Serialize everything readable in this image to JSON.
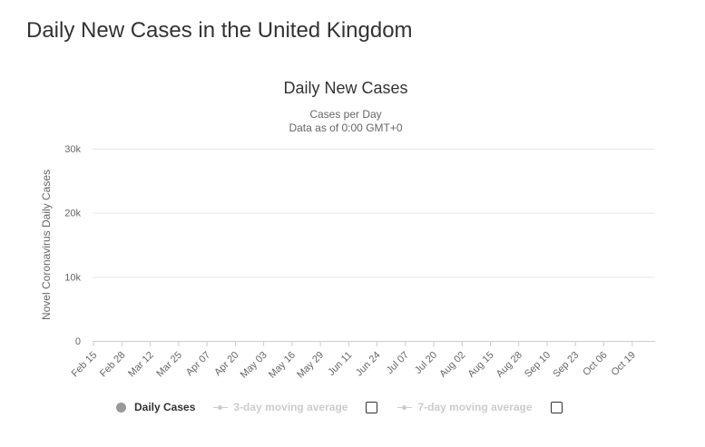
{
  "page": {
    "title": "Daily New Cases in the United Kingdom"
  },
  "chart_data": {
    "type": "bar",
    "title": "Daily New Cases",
    "subtitle_line1": "Cases per Day",
    "subtitle_line2": "Data as of 0:00 GMT+0",
    "ylabel": "Novel Coronavirus Daily Cases",
    "xlabel": "",
    "ylim": [
      0,
      30000
    ],
    "y_ticks": [
      0,
      10000,
      20000,
      30000
    ],
    "y_tick_labels": [
      "0",
      "10k",
      "20k",
      "30k"
    ],
    "x_tick_labels": [
      "Feb 15",
      "Feb 28",
      "Mar 12",
      "Mar 25",
      "Apr 07",
      "Apr 20",
      "May 03",
      "May 16",
      "May 29",
      "Jun 11",
      "Jun 24",
      "Jul 07",
      "Jul 20",
      "Aug 02",
      "Aug 15",
      "Aug 28",
      "Sep 10",
      "Sep 23",
      "Oct 06",
      "Oct 19"
    ],
    "x_tick_interval_days": 13,
    "first_date": "Feb 15",
    "grid": true,
    "bar_color": "#999999",
    "series": [
      {
        "name": "Daily Cases",
        "values": [
          0,
          0,
          0,
          0,
          0,
          0,
          0,
          0,
          0,
          0,
          0,
          0,
          0,
          0,
          0,
          0,
          0,
          0,
          0,
          0,
          0,
          0,
          0,
          0,
          0,
          0,
          0,
          0,
          0,
          0,
          0,
          0,
          0,
          0,
          0,
          0,
          0,
          0,
          0,
          0,
          0,
          0,
          0,
          0,
          0,
          0,
          0,
          0,
          0,
          0,
          0,
          0,
          0,
          0,
          0,
          0,
          0,
          0,
          0,
          0,
          0,
          0,
          0,
          0,
          0,
          0,
          0,
          0,
          0,
          0,
          0,
          0,
          0,
          0,
          0,
          0,
          0,
          0,
          0,
          0,
          0,
          0,
          0,
          0,
          0,
          0,
          0,
          0,
          0,
          0,
          0,
          0,
          0,
          0,
          0,
          0,
          0,
          0,
          0,
          0,
          0,
          0,
          0,
          0,
          0,
          0,
          0,
          0,
          0,
          0,
          0,
          0,
          0,
          0,
          0,
          0,
          0,
          0,
          0,
          0,
          0,
          0,
          0,
          0,
          0,
          0,
          0,
          0,
          0,
          0,
          0,
          0,
          0,
          0,
          0,
          0,
          0,
          0,
          0,
          0,
          0,
          0,
          0,
          0,
          0,
          0,
          0,
          0,
          0,
          0,
          0,
          0,
          0,
          0,
          0,
          0,
          0,
          0,
          0,
          0,
          0,
          0,
          0,
          0,
          0,
          0,
          0,
          0,
          0,
          0,
          0,
          0,
          0,
          0,
          0,
          0,
          0,
          0,
          0,
          0,
          0,
          0,
          0,
          0,
          0,
          0,
          0,
          0,
          0,
          0,
          0,
          0,
          0,
          0,
          0,
          0,
          0,
          0,
          0,
          0,
          0,
          0,
          0,
          0,
          0,
          0,
          0,
          0,
          0,
          0,
          0,
          0,
          0,
          0,
          0,
          0,
          0,
          0,
          0,
          0,
          0,
          0,
          0,
          0,
          0,
          0,
          0,
          0,
          0,
          0,
          0,
          0,
          0,
          0,
          0,
          0,
          0,
          0,
          0,
          0,
          0,
          0,
          0,
          0,
          0,
          0,
          0,
          0,
          0,
          0,
          0,
          0,
          0,
          0,
          0,
          0,
          0,
          0
        ]
      }
    ],
    "legend": [
      "Daily Cases",
      "3-day moving average",
      "7-day moving average"
    ]
  }
}
